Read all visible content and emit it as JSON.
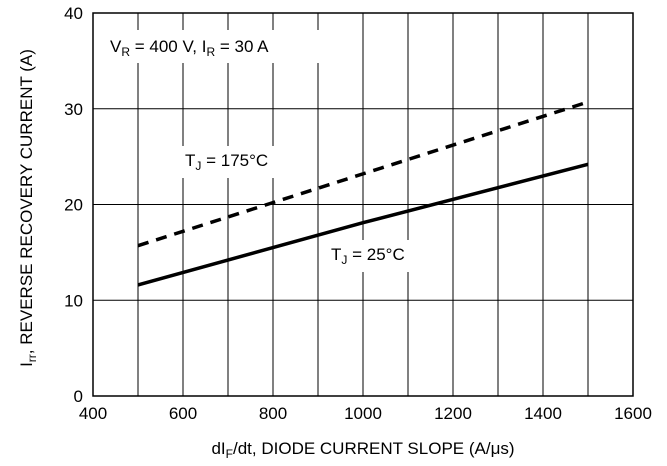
{
  "chart_data": {
    "type": "line",
    "xlabel": {
      "pre": "dI",
      "sub": "F",
      "post": "/dt, DIODE CURRENT SLOPE (A/μs)"
    },
    "ylabel": {
      "pre": "I",
      "sub": "rr",
      "post": ", REVERSE RECOVERY CURRENT (A)"
    },
    "xlim": [
      400,
      1600
    ],
    "ylim": [
      0,
      40
    ],
    "x_ticks": [
      400,
      600,
      800,
      1000,
      1200,
      1400,
      1600
    ],
    "x_tick_labels": [
      "400",
      "600",
      "800",
      "1000",
      "1200",
      "1400",
      "1600"
    ],
    "y_ticks": [
      0,
      10,
      20,
      30,
      40
    ],
    "y_tick_labels": [
      "0",
      "10",
      "20",
      "30",
      "40"
    ],
    "x_grid_step": 100,
    "y_grid_step": 10,
    "grid": true,
    "conditions": {
      "vr": {
        "pre": "V",
        "sub": "R",
        "post": " = 400 V, "
      },
      "ir": {
        "pre": "I",
        "sub": "R",
        "post": " = 30 A"
      }
    },
    "series": [
      {
        "label": {
          "pre": "T",
          "sub": "J",
          "post": " = 175°C"
        },
        "style": "dashed",
        "x": [
          500,
          1500
        ],
        "y": [
          15.7,
          30.7
        ]
      },
      {
        "label": {
          "pre": "T",
          "sub": "J",
          "post": " = 25°C"
        },
        "style": "solid",
        "x": [
          500,
          1000,
          1500
        ],
        "y": [
          11.6,
          18.1,
          24.2
        ]
      }
    ]
  }
}
